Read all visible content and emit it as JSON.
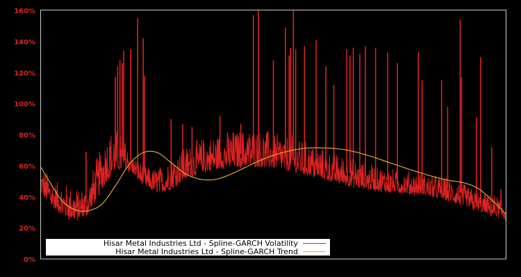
{
  "chart_data": {
    "type": "line",
    "title": "",
    "xlabel": "",
    "ylabel": "",
    "ylim": [
      0,
      160
    ],
    "y_ticks": [
      0,
      20,
      40,
      60,
      80,
      100,
      120,
      140,
      160
    ],
    "y_tick_labels": [
      "0%",
      "20%",
      "40%",
      "60%",
      "80%",
      "100%",
      "120%",
      "140%",
      "160%"
    ],
    "x_ticks": [],
    "grid": false,
    "legend_position": "lower-left",
    "background": "#000000",
    "axis_color": "#cccccc",
    "tick_label_color": "#dd2222",
    "series": [
      {
        "name": "Hisar Metal Industries Ltd - Spline-GARCH Volatility",
        "color": "#dd2222",
        "x_frac": [
          0.0,
          0.03,
          0.06,
          0.08,
          0.1,
          0.12,
          0.14,
          0.16,
          0.18,
          0.2,
          0.22,
          0.24,
          0.26,
          0.28,
          0.3,
          0.32,
          0.35,
          0.4,
          0.45,
          0.5,
          0.55,
          0.6,
          0.65,
          0.7,
          0.75,
          0.8,
          0.85,
          0.9,
          0.95,
          1.0
        ],
        "lower_envelope": [
          42,
          32,
          26,
          25,
          29,
          38,
          50,
          57,
          58,
          54,
          48,
          44,
          43,
          45,
          50,
          53,
          56,
          59,
          60,
          59,
          56,
          52,
          48,
          45,
          43,
          42,
          40,
          35,
          30,
          25
        ],
        "typical_upper": [
          60,
          50,
          48,
          45,
          48,
          65,
          80,
          85,
          78,
          66,
          60,
          58,
          60,
          66,
          70,
          74,
          78,
          82,
          84,
          82,
          78,
          72,
          66,
          62,
          58,
          56,
          54,
          50,
          42,
          40
        ],
        "spikes": [
          {
            "x_frac": 0.097,
            "value": 69
          },
          {
            "x_frac": 0.16,
            "value": 117
          },
          {
            "x_frac": 0.165,
            "value": 124
          },
          {
            "x_frac": 0.17,
            "value": 128
          },
          {
            "x_frac": 0.175,
            "value": 126
          },
          {
            "x_frac": 0.178,
            "value": 134
          },
          {
            "x_frac": 0.193,
            "value": 135
          },
          {
            "x_frac": 0.208,
            "value": 155
          },
          {
            "x_frac": 0.22,
            "value": 142
          },
          {
            "x_frac": 0.223,
            "value": 118
          },
          {
            "x_frac": 0.28,
            "value": 90
          },
          {
            "x_frac": 0.305,
            "value": 87
          },
          {
            "x_frac": 0.325,
            "value": 85
          },
          {
            "x_frac": 0.385,
            "value": 92
          },
          {
            "x_frac": 0.43,
            "value": 87
          },
          {
            "x_frac": 0.457,
            "value": 157
          },
          {
            "x_frac": 0.468,
            "value": 160
          },
          {
            "x_frac": 0.5,
            "value": 128
          },
          {
            "x_frac": 0.526,
            "value": 149
          },
          {
            "x_frac": 0.534,
            "value": 131
          },
          {
            "x_frac": 0.537,
            "value": 136
          },
          {
            "x_frac": 0.543,
            "value": 160
          },
          {
            "x_frac": 0.548,
            "value": 135
          },
          {
            "x_frac": 0.567,
            "value": 137
          },
          {
            "x_frac": 0.592,
            "value": 141
          },
          {
            "x_frac": 0.613,
            "value": 124
          },
          {
            "x_frac": 0.63,
            "value": 112
          },
          {
            "x_frac": 0.658,
            "value": 135
          },
          {
            "x_frac": 0.665,
            "value": 131
          },
          {
            "x_frac": 0.672,
            "value": 136
          },
          {
            "x_frac": 0.686,
            "value": 132
          },
          {
            "x_frac": 0.698,
            "value": 137
          },
          {
            "x_frac": 0.72,
            "value": 136
          },
          {
            "x_frac": 0.746,
            "value": 133
          },
          {
            "x_frac": 0.767,
            "value": 126
          },
          {
            "x_frac": 0.812,
            "value": 133
          },
          {
            "x_frac": 0.82,
            "value": 115
          },
          {
            "x_frac": 0.862,
            "value": 115
          },
          {
            "x_frac": 0.875,
            "value": 98
          },
          {
            "x_frac": 0.902,
            "value": 154
          },
          {
            "x_frac": 0.905,
            "value": 117
          },
          {
            "x_frac": 0.937,
            "value": 91
          },
          {
            "x_frac": 0.946,
            "value": 130
          },
          {
            "x_frac": 0.97,
            "value": 72
          },
          {
            "x_frac": 0.99,
            "value": 45
          }
        ]
      },
      {
        "name": "Hisar Metal Industries Ltd - Spline-GARCH Trend",
        "color": "#ddaa33",
        "x_frac": [
          0.0,
          0.03,
          0.05,
          0.075,
          0.1,
          0.13,
          0.16,
          0.19,
          0.22,
          0.25,
          0.28,
          0.31,
          0.34,
          0.37,
          0.4,
          0.44,
          0.48,
          0.52,
          0.56,
          0.6,
          0.65,
          0.7,
          0.75,
          0.8,
          0.85,
          0.88,
          0.91,
          0.94,
          0.97,
          1.0
        ],
        "values": [
          59,
          44,
          36,
          31.5,
          31,
          35,
          47,
          61,
          68.5,
          68.5,
          62,
          55,
          51.5,
          51,
          53.5,
          59,
          64.5,
          68.5,
          71,
          71.5,
          70.5,
          67,
          62,
          57,
          52.5,
          50.5,
          49,
          45.5,
          38,
          29
        ]
      }
    ]
  },
  "legend": {
    "items": [
      {
        "label": "Hisar Metal Industries Ltd - Spline-GARCH Volatility",
        "color": "#dd2222"
      },
      {
        "label": "Hisar Metal Industries Ltd - Spline-GARCH Trend",
        "color": "#ddaa33"
      }
    ]
  }
}
